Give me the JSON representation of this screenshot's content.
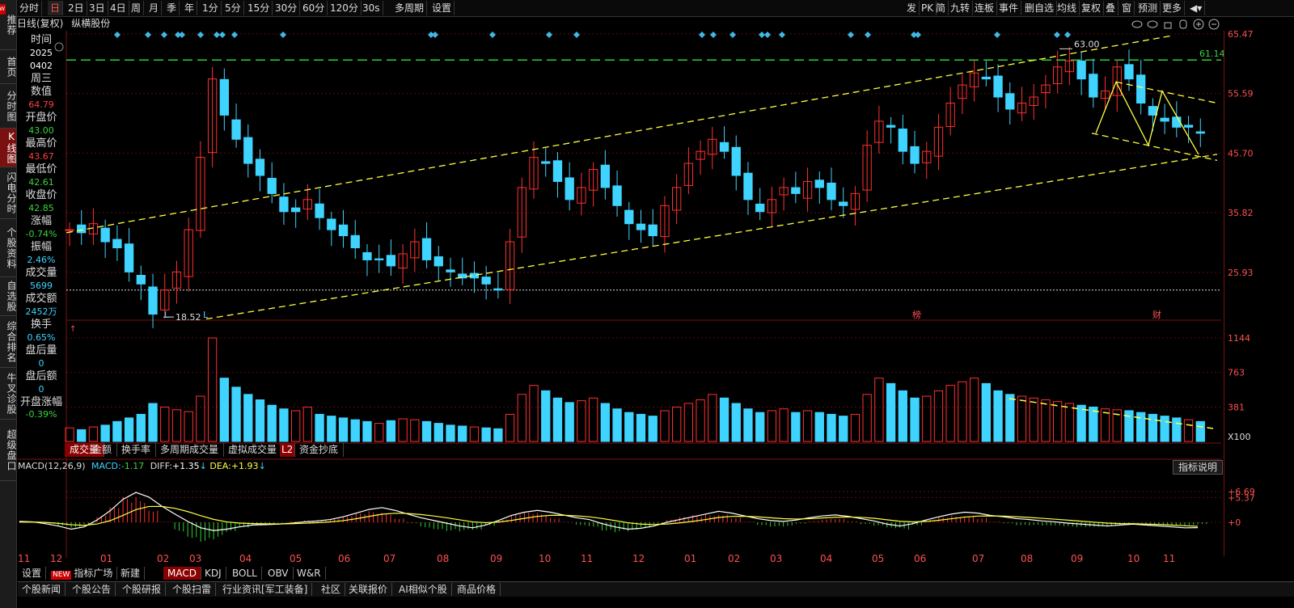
{
  "sidebar": [
    {
      "label": "推荐",
      "badge": "NEW"
    },
    {
      "label": "首页"
    },
    {
      "label": "分时图"
    },
    {
      "label": "K线图",
      "active": true
    },
    {
      "label": "闪电分时"
    },
    {
      "label": "个股资料"
    },
    {
      "label": "自选股"
    },
    {
      "label": "综合排名"
    },
    {
      "label": "牛叉诊股"
    },
    {
      "label": "超级盘口"
    }
  ],
  "topbar_left": [
    "分时",
    "日",
    "2日",
    "3日",
    "4日",
    "周",
    "月",
    "季",
    "年",
    "1分",
    "5分",
    "15分",
    "30分",
    "60分",
    "120分",
    "30s",
    "多周期",
    "设置"
  ],
  "topbar_right": [
    "发",
    "PK",
    "简",
    "九转",
    "连板",
    "事件",
    "删自选",
    "均线",
    "复权",
    "叠",
    "窗",
    "预测",
    "更多"
  ],
  "title": {
    "mode": "日线(复权)",
    "name": "纵横股份"
  },
  "info": {
    "time_label": "时间",
    "year": "2025",
    "date": "0402",
    "weekday": "周三",
    "value_label": "数值",
    "value": "64.79",
    "open_label": "开盘价",
    "open": "43.00",
    "high_label": "最高价",
    "high": "43.67",
    "low_label": "最低价",
    "low": "42.61",
    "close_label": "收盘价",
    "close": "42.85",
    "chg_label": "涨幅",
    "chg": "-0.74%",
    "amp_label": "振幅",
    "amp": "2.46%",
    "vol_label": "成交量",
    "vol": "5699",
    "amt_label": "成交额",
    "amt": "2452万",
    "turn_label": "换手",
    "turn": "0.65%",
    "after_vol_label": "盘后量",
    "after_vol": "0",
    "after_amt_label": "盘后额",
    "after_amt": "0",
    "open_chg_label": "开盘涨幅",
    "open_chg": "-0.39%"
  },
  "price_axis": [
    "65.47",
    "61.14",
    "55.59",
    "45.70",
    "35.82",
    "25.93"
  ],
  "price_annotations": {
    "high": "63.00",
    "low": "18.52",
    "lower_marks": [
      "L",
      "L"
    ],
    "event_marks": [
      "榜",
      "财"
    ]
  },
  "volume_axis": [
    "1144",
    "763",
    "381",
    "X100"
  ],
  "volume_tabs": [
    "成交量",
    "金额",
    "换手率",
    "多周期成交量",
    "虚拟成交量",
    "L2",
    "资金抄底"
  ],
  "macd": {
    "name": "MACD(12,26,9)",
    "macd_label": "MACD:",
    "macd_val": "-1.17",
    "diff_label": "DIFF:",
    "diff_val": "+1.35",
    "dea_label": "DEA:",
    "dea_val": "+1.93",
    "axis": [
      "+6.69",
      "+5.37",
      "+0"
    ],
    "button": "指标说明"
  },
  "months": [
    "11",
    "12",
    "01",
    "02",
    "03",
    "04",
    "05",
    "06",
    "07",
    "08",
    "09",
    "10",
    "11",
    "12",
    "01",
    "02",
    "03",
    "04",
    "05",
    "06",
    "07",
    "08",
    "09",
    "10",
    "11"
  ],
  "bottom_tabs": [
    "设置",
    "指标广场",
    "新建",
    "MACD",
    "KDJ",
    "BOLL",
    "OBV",
    "W&R"
  ],
  "news_tabs": [
    "个股新闻",
    "个股公告",
    "个股研报",
    "个股扫雷",
    "行业资讯[军工装备]",
    "社区",
    "关联报价",
    "AI相似个股",
    "商品价格"
  ],
  "colors": {
    "up": "#ff3030",
    "down": "#3fd4ff",
    "trend": "#ffff40",
    "support": "#2ed02e"
  },
  "chart_data": {
    "type": "candlestick",
    "price_range": [
      18,
      66
    ],
    "resistance_level": 61.14,
    "recent_high": 63.0,
    "low_point": 18.52,
    "close_series": [
      33,
      32.5,
      34,
      31,
      30,
      26,
      24,
      19,
      23,
      26,
      33,
      45,
      58,
      52,
      48,
      44,
      42,
      39,
      36,
      36,
      38,
      35,
      33,
      32,
      30,
      28,
      28,
      27,
      29,
      31,
      28,
      27,
      26,
      25,
      25,
      24,
      23,
      31,
      40,
      45,
      44,
      41,
      38,
      40,
      43,
      40,
      37,
      34,
      33,
      32,
      37,
      40,
      44,
      46,
      48,
      46,
      42,
      38,
      36,
      38,
      40,
      39,
      41,
      40,
      38,
      37,
      39,
      47,
      51,
      50,
      46,
      44,
      46,
      50,
      54,
      57,
      59,
      58,
      55,
      53,
      54,
      55,
      57,
      60,
      61,
      58,
      55,
      56,
      60,
      58,
      54,
      52,
      51,
      50,
      50,
      49
    ],
    "volume_series": [
      150,
      130,
      160,
      180,
      220,
      260,
      300,
      420,
      380,
      350,
      330,
      500,
      1144,
      700,
      600,
      520,
      460,
      400,
      360,
      340,
      380,
      300,
      280,
      260,
      240,
      220,
      200,
      230,
      250,
      240,
      220,
      200,
      180,
      170,
      160,
      150,
      140,
      300,
      520,
      620,
      560,
      480,
      430,
      450,
      480,
      420,
      360,
      320,
      300,
      280,
      340,
      380,
      420,
      460,
      520,
      480,
      420,
      360,
      320,
      340,
      360,
      320,
      340,
      320,
      300,
      280,
      300,
      520,
      700,
      640,
      560,
      480,
      500,
      560,
      620,
      660,
      700,
      640,
      560,
      520,
      500,
      480,
      460,
      440,
      420,
      400,
      380,
      360,
      350,
      340,
      320,
      300,
      280,
      260,
      240,
      220
    ],
    "macd_series": [
      0.2,
      0.1,
      -0.3,
      -0.8,
      -1.5,
      -1.0,
      0.5,
      2.5,
      5.0,
      6.5,
      5.5,
      3.5,
      1.8,
      0.2,
      -1.2,
      -1.8,
      -1.5,
      -1.0,
      -0.6,
      -0.5,
      -0.4,
      -0.2,
      0.1,
      0.3,
      0.6,
      1.2,
      2.0,
      2.8,
      3.2,
      2.6,
      1.8,
      1.0,
      0.4,
      -0.2,
      -0.8,
      -1.2,
      -0.6,
      0.4,
      1.5,
      2.2,
      2.6,
      2.2,
      1.6,
      1.0,
      0.6,
      -0.3,
      -1.0,
      -1.5,
      -1.3,
      -0.8,
      0.0,
      0.6,
      1.2,
      1.8,
      2.4,
      2.0,
      1.4,
      0.8,
      0.4,
      0.2,
      0.5,
      1.0,
      1.4,
      1.6,
      1.3,
      0.8,
      0.3,
      -0.4,
      -0.8,
      -0.3,
      0.5,
      1.2,
      1.8,
      2.2,
      2.0,
      1.5,
      1.2,
      0.8,
      0.6,
      0.3,
      0.1,
      -0.2,
      -0.4,
      -0.6,
      -0.8,
      -0.6,
      -0.4,
      -0.6,
      -0.8,
      -1.0,
      -1.2,
      -1.17
    ]
  }
}
